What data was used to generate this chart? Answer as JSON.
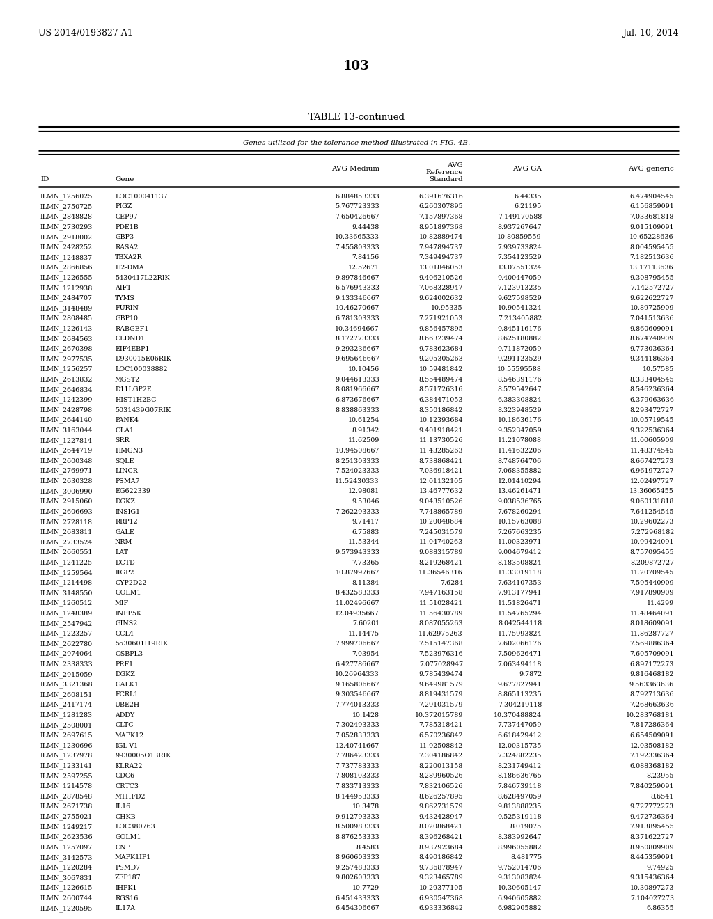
{
  "page_number": "103",
  "patent_left": "US 2014/0193827 A1",
  "patent_right": "Jul. 10, 2014",
  "table_title": "TABLE 13-continued",
  "table_subtitle": "Genes utilized for the tolerance method illustrated in FIG. 4B.",
  "rows": [
    [
      "ILMN_1256025",
      "LOC100041137",
      "6.884853333",
      "6.391676316",
      "6.44335",
      "6.474904545"
    ],
    [
      "ILMN_2750725",
      "PIGZ",
      "5.767723333",
      "6.260307895",
      "6.21195",
      "6.156859091"
    ],
    [
      "ILMN_2848828",
      "CEP97",
      "7.650426667",
      "7.157897368",
      "7.149170588",
      "7.033681818"
    ],
    [
      "ILMN_2730293",
      "PDE1B",
      "9.44438",
      "8.951897368",
      "8.937267647",
      "9.015109091"
    ],
    [
      "ILMN_2918002",
      "GBP3",
      "10.33665333",
      "10.82889474",
      "10.80859559",
      "10.65228636"
    ],
    [
      "ILMN_2428252",
      "RASA2",
      "7.455803333",
      "7.947894737",
      "7.939733824",
      "8.004595455"
    ],
    [
      "ILMN_1248837",
      "TBXA2R",
      "7.84156",
      "7.349494737",
      "7.354123529",
      "7.182513636"
    ],
    [
      "ILMN_2866856",
      "H2-DMA",
      "12.52671",
      "13.01846053",
      "13.07551324",
      "13.17113636"
    ],
    [
      "ILMN_1226555",
      "5430417L22RIK",
      "9.897846667",
      "9.406210526",
      "9.400447059",
      "9.308795455"
    ],
    [
      "ILMN_1212938",
      "AIF1",
      "6.576943333",
      "7.068328947",
      "7.123913235",
      "7.142572727"
    ],
    [
      "ILMN_2484707",
      "TYMS",
      "9.133346667",
      "9.624002632",
      "9.627598529",
      "9.622622727"
    ],
    [
      "ILMN_3148489",
      "FURIN",
      "10.46270667",
      "10.95335",
      "10.90541324",
      "10.89725909"
    ],
    [
      "ILMN_2808485",
      "GBP10",
      "6.781303333",
      "7.271921053",
      "7.213405882",
      "7.041513636"
    ],
    [
      "ILMN_1226143",
      "RABGEF1",
      "10.34694667",
      "9.856457895",
      "9.845116176",
      "9.860609091"
    ],
    [
      "ILMN_2684563",
      "CLDND1",
      "8.172773333",
      "8.663239474",
      "8.625180882",
      "8.674740909"
    ],
    [
      "ILMN_2670398",
      "EIF4EBP1",
      "9.293236667",
      "9.783623684",
      "9.711872059",
      "9.773036364"
    ],
    [
      "ILMN_2977535",
      "D930015E06RIK",
      "9.695646667",
      "9.205305263",
      "9.291123529",
      "9.344186364"
    ],
    [
      "ILMN_1256257",
      "LOC100038882",
      "10.10456",
      "10.59481842",
      "10.55595588",
      "10.57585"
    ],
    [
      "ILMN_2613832",
      "MGST2",
      "9.044613333",
      "8.554489474",
      "8.546391176",
      "8.333404545"
    ],
    [
      "ILMN_2646834",
      "D11LGP2E",
      "8.081966667",
      "8.571726316",
      "8.579542647",
      "8.546236364"
    ],
    [
      "ILMN_1242399",
      "HIST1H2BC",
      "6.873676667",
      "6.384471053",
      "6.383308824",
      "6.379063636"
    ],
    [
      "ILMN_2428798",
      "5031439G07RIK",
      "8.838863333",
      "8.350186842",
      "8.323948529",
      "8.293472727"
    ],
    [
      "ILMN_2644140",
      "PANK4",
      "10.61254",
      "10.12393684",
      "10.18636176",
      "10.05719545"
    ],
    [
      "ILMN_3163044",
      "OLA1",
      "8.91342",
      "9.401918421",
      "9.352347059",
      "9.322536364"
    ],
    [
      "ILMN_1227814",
      "SRR",
      "11.62509",
      "11.13730526",
      "11.21078088",
      "11.00605909"
    ],
    [
      "ILMN_2644719",
      "HMGN3",
      "10.94508667",
      "11.43285263",
      "11.41632206",
      "11.48374545"
    ],
    [
      "ILMN_2600348",
      "SQLE",
      "8.251303333",
      "8.738868421",
      "8.748764706",
      "8.667427273"
    ],
    [
      "ILMN_2769971",
      "LINCR",
      "7.524023333",
      "7.036918421",
      "7.068355882",
      "6.961972727"
    ],
    [
      "ILMN_2630328",
      "PSMA7",
      "11.52430333",
      "12.01132105",
      "12.01410294",
      "12.02497727"
    ],
    [
      "ILMN_3006990",
      "EG622339",
      "12.98081",
      "13.46777632",
      "13.46261471",
      "13.36065455"
    ],
    [
      "ILMN_2915060",
      "DGKZ",
      "9.53046",
      "9.043510526",
      "9.038536765",
      "9.060131818"
    ],
    [
      "ILMN_2606693",
      "INSIG1",
      "7.262293333",
      "7.748865789",
      "7.678260294",
      "7.641254545"
    ],
    [
      "ILMN_2728118",
      "RRP12",
      "9.71417",
      "10.20048684",
      "10.15763088",
      "10.29602273"
    ],
    [
      "ILMN_2683811",
      "GALE",
      "6.75883",
      "7.245031579",
      "7.267663235",
      "7.272968182"
    ],
    [
      "ILMN_2733524",
      "NRM",
      "11.53344",
      "11.04740263",
      "11.00323971",
      "10.99424091"
    ],
    [
      "ILMN_2660551",
      "LAT",
      "9.573943333",
      "9.088315789",
      "9.004679412",
      "8.757095455"
    ],
    [
      "ILMN_1241225",
      "DCTD",
      "7.73365",
      "8.219268421",
      "8.183508824",
      "8.209872727"
    ],
    [
      "ILMN_1259564",
      "IIGP2",
      "10.87997667",
      "11.36546316",
      "11.33019118",
      "11.20709545"
    ],
    [
      "ILMN_1214498",
      "CYP2D22",
      "8.11384",
      "7.6284",
      "7.634107353",
      "7.595440909"
    ],
    [
      "ILMN_3148550",
      "GOLM1",
      "8.432583333",
      "7.947163158",
      "7.913177941",
      "7.917890909"
    ],
    [
      "ILMN_1260512",
      "MIF",
      "11.02496667",
      "11.51028421",
      "11.51826471",
      "11.4299"
    ],
    [
      "ILMN_1248389",
      "INPP5K",
      "12.04935667",
      "11.56430789",
      "11.54765294",
      "11.48464091"
    ],
    [
      "ILMN_2547942",
      "GINS2",
      "7.60201",
      "8.087055263",
      "8.042544118",
      "8.018609091"
    ],
    [
      "ILMN_1223257",
      "CCL4",
      "11.14475",
      "11.62975263",
      "11.75993824",
      "11.86287727"
    ],
    [
      "ILMN_2622780",
      "5530601I19RIK",
      "7.999706667",
      "7.515147368",
      "7.602066176",
      "7.569886364"
    ],
    [
      "ILMN_2974064",
      "OSBPL3",
      "7.03954",
      "7.523976316",
      "7.509626471",
      "7.605709091"
    ],
    [
      "ILMN_2338333",
      "PRF1",
      "6.427786667",
      "7.077028947",
      "7.063494118",
      "6.897172273"
    ],
    [
      "ILMN_2915059",
      "DGKZ",
      "10.26964333",
      "9.785439474",
      "9.7872",
      "9.816468182"
    ],
    [
      "ILMN_3321368",
      "GALK1",
      "9.165806667",
      "9.649981579",
      "9.677827941",
      "9.563363636"
    ],
    [
      "ILMN_2608151",
      "FCRL1",
      "9.303546667",
      "8.819431579",
      "8.865113235",
      "8.792713636"
    ],
    [
      "ILMN_2417174",
      "UBE2H",
      "7.774013333",
      "7.291031579",
      "7.304219118",
      "7.268663636"
    ],
    [
      "ILMN_1281283",
      "ADDY",
      "10.1428",
      "10.372015789",
      "10.370488824",
      "10.283768181"
    ],
    [
      "ILMN_2508001",
      "CLTC",
      "7.302493333",
      "7.785318421",
      "7.737447059",
      "7.817286364"
    ],
    [
      "ILMN_2697615",
      "MAPK12",
      "7.052833333",
      "6.570236842",
      "6.618429412",
      "6.654509091"
    ],
    [
      "ILMN_1230696",
      "IGL-V1",
      "12.40741667",
      "11.92508842",
      "12.00315735",
      "12.03508182"
    ],
    [
      "ILMN_1237978",
      "9930005O13RIK",
      "7.786423333",
      "7.304186842",
      "7.324882235",
      "7.192336364"
    ],
    [
      "ILMN_1233141",
      "KLRA22",
      "7.737783333",
      "8.220013158",
      "8.231749412",
      "6.088368182"
    ],
    [
      "ILMN_2597255",
      "CDC6",
      "7.808103333",
      "8.289960526",
      "8.186636765",
      "8.23955"
    ],
    [
      "ILMN_1214578",
      "CRTC3",
      "7.833713333",
      "7.832106526",
      "7.846739118",
      "7.840259091"
    ],
    [
      "ILMN_2878548",
      "MTHFD2",
      "8.144953333",
      "8.626257895",
      "8.628497059",
      "8.6541"
    ],
    [
      "ILMN_2671738",
      "IL16",
      "10.3478",
      "9.862731579",
      "9.813888235",
      "9.727772273"
    ],
    [
      "ILMN_2755021",
      "CHKB",
      "9.912793333",
      "9.432428947",
      "9.525319118",
      "9.472736364"
    ],
    [
      "ILMN_1249217",
      "LOC380763",
      "8.500983333",
      "8.020868421",
      "8.019075",
      "7.913895455"
    ],
    [
      "ILMN_2623536",
      "GOLM1",
      "8.876253333",
      "8.396268421",
      "8.383992647",
      "8.371622727"
    ],
    [
      "ILMN_1257097",
      "CNP",
      "8.4583",
      "8.937923684",
      "8.996055882",
      "8.950809909"
    ],
    [
      "ILMN_3142573",
      "MAPK1IP1",
      "8.960603333",
      "8.490186842",
      "8.481775",
      "8.445359091"
    ],
    [
      "ILMN_1220284",
      "PSMD7",
      "9.257483333",
      "9.736878947",
      "9.752014706",
      "9.74925"
    ],
    [
      "ILMN_3067831",
      "ZFP187",
      "9.802603333",
      "9.323465789",
      "9.313083824",
      "9.315436364"
    ],
    [
      "ILMN_1226615",
      "IHPK1",
      "10.7729",
      "10.29377105",
      "10.30605147",
      "10.30897273"
    ],
    [
      "ILMN_2600744",
      "RGS16",
      "6.451433333",
      "6.930547368",
      "6.940605882",
      "7.104027273"
    ],
    [
      "ILMN_1220595",
      "IL17A",
      "6.454306667",
      "6.933336842",
      "6.982905882",
      "6.86355"
    ]
  ]
}
